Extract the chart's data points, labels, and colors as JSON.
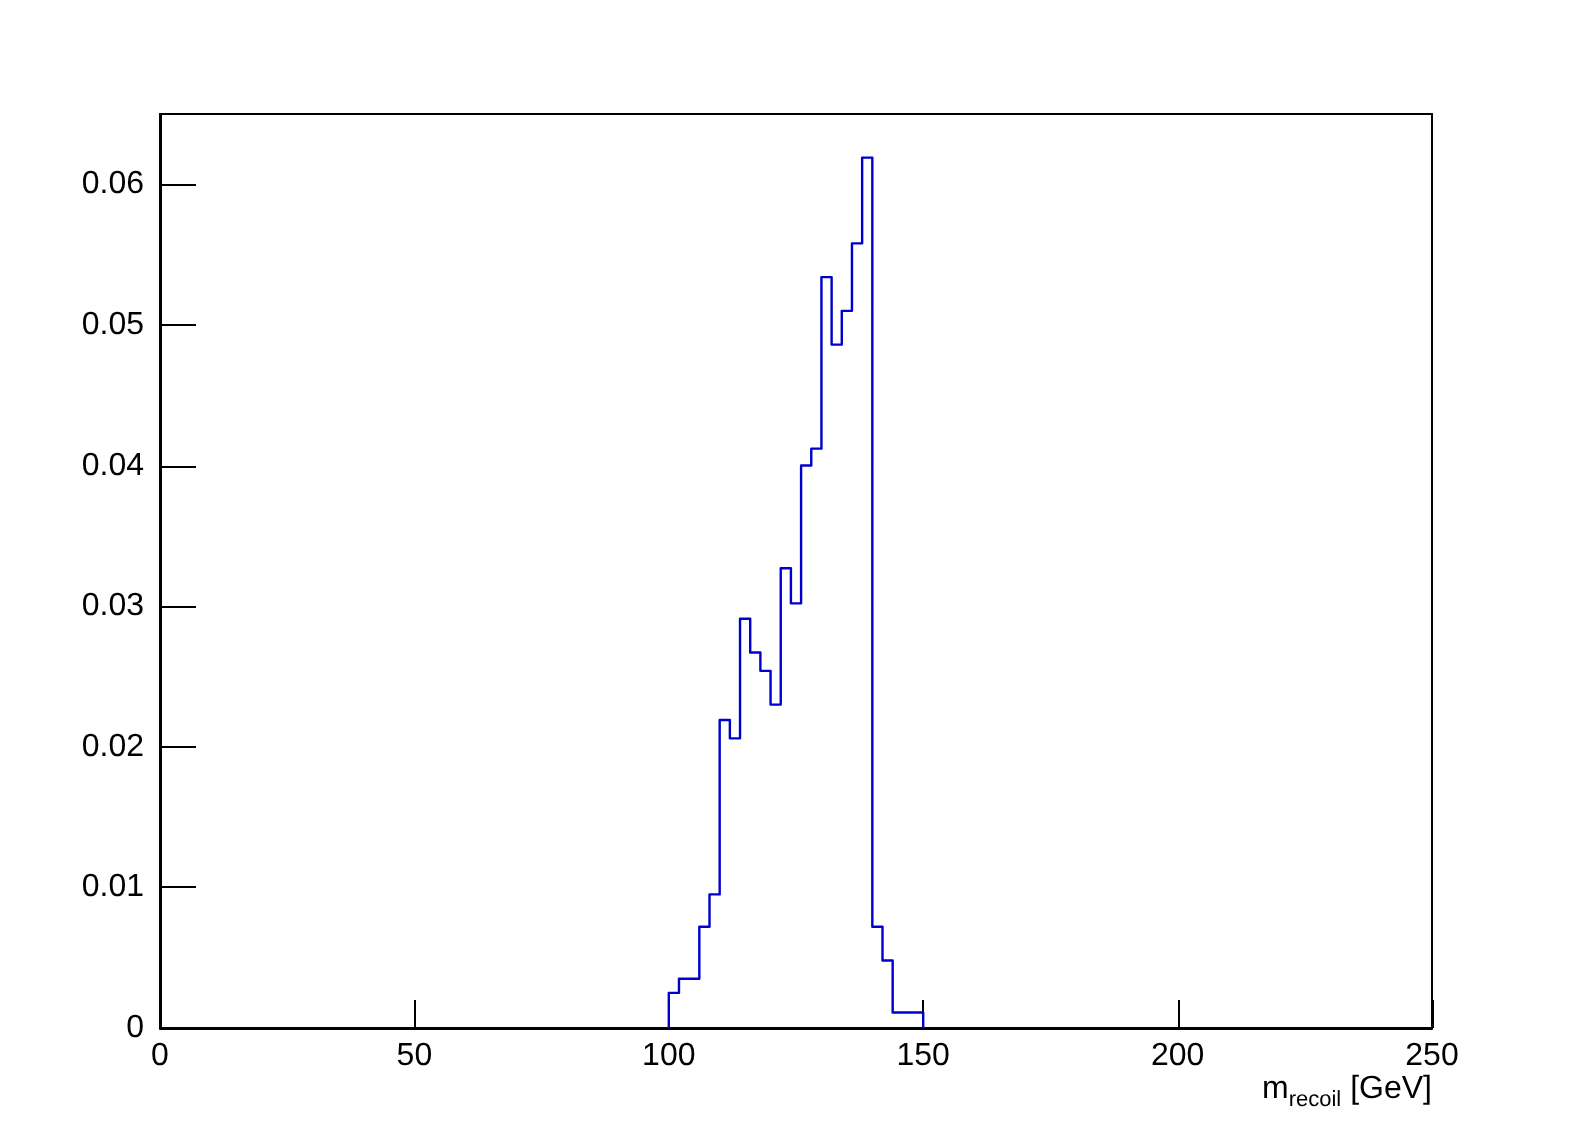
{
  "chart_data": {
    "type": "histogram",
    "xlabel": "m$_{recoil}$ [GeV]",
    "bins": [
      100,
      102,
      104,
      106,
      108,
      110,
      112,
      114,
      116,
      118,
      120,
      122,
      124,
      126,
      128,
      130,
      132,
      134,
      136,
      138,
      140,
      142,
      144,
      146,
      148,
      150
    ],
    "values": [
      0.0025,
      0.0035,
      0.0035,
      0.0072,
      0.0095,
      0.0219,
      0.0206,
      0.0291,
      0.0267,
      0.0254,
      0.023,
      0.0327,
      0.0302,
      0.04,
      0.0412,
      0.0534,
      0.0486,
      0.051,
      0.0558,
      0.0619,
      0.0072,
      0.0048,
      0.0011,
      0.0011,
      0.0011
    ],
    "color": "#0000cc",
    "xlim": [
      0,
      250
    ],
    "xticks": [
      0,
      50,
      100,
      150,
      200,
      250
    ],
    "ylim": [
      0,
      0.065
    ],
    "yticks": [
      0,
      0.01,
      0.02,
      0.03,
      0.04,
      0.05,
      0.06
    ],
    "grid": false
  }
}
